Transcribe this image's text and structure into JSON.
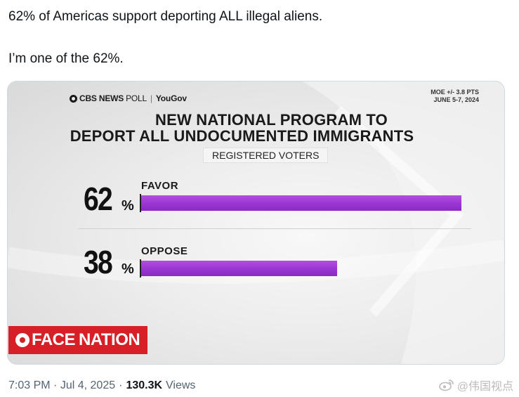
{
  "tweet": {
    "line1": "62% of Americas support deporting ALL illegal aliens.",
    "line2": "I’m one of the 62%."
  },
  "graphic": {
    "brand": {
      "network": "CBS NEWS",
      "poll": "POLL",
      "separator": "|",
      "partner": "YouGov"
    },
    "moe_line1": "MOE +/- 3.8 PTS",
    "moe_line2": "JUNE 5-7, 2024",
    "headline_line1": "NEW NATIONAL PROGRAM TO",
    "headline_line2": "DEPORT ALL UNDOCUMENTED IMMIGRANTS",
    "subtitle": "REGISTERED VOTERS",
    "favor_pct": "62",
    "favor_pct_sign": "%",
    "favor_label": "FAVOR",
    "oppose_pct": "38",
    "oppose_pct_sign": "%",
    "oppose_label": "OPPOSE",
    "show_logo_face": "FACE",
    "show_logo_nation": "NATION",
    "bar_color": "#9a35d2",
    "logo_color": "#d61f26"
  },
  "chart_data": {
    "type": "bar",
    "categories": [
      "FAVOR",
      "OPPOSE"
    ],
    "values": [
      62,
      38
    ]
  },
  "footer": {
    "time": "7:03 PM",
    "dot1": "·",
    "date": "Jul 4, 2025",
    "dot2": "·",
    "views_count": "130.3K",
    "views_label": "Views"
  },
  "watermark": {
    "icon": "weibo-icon",
    "text": "@伟国视点"
  }
}
